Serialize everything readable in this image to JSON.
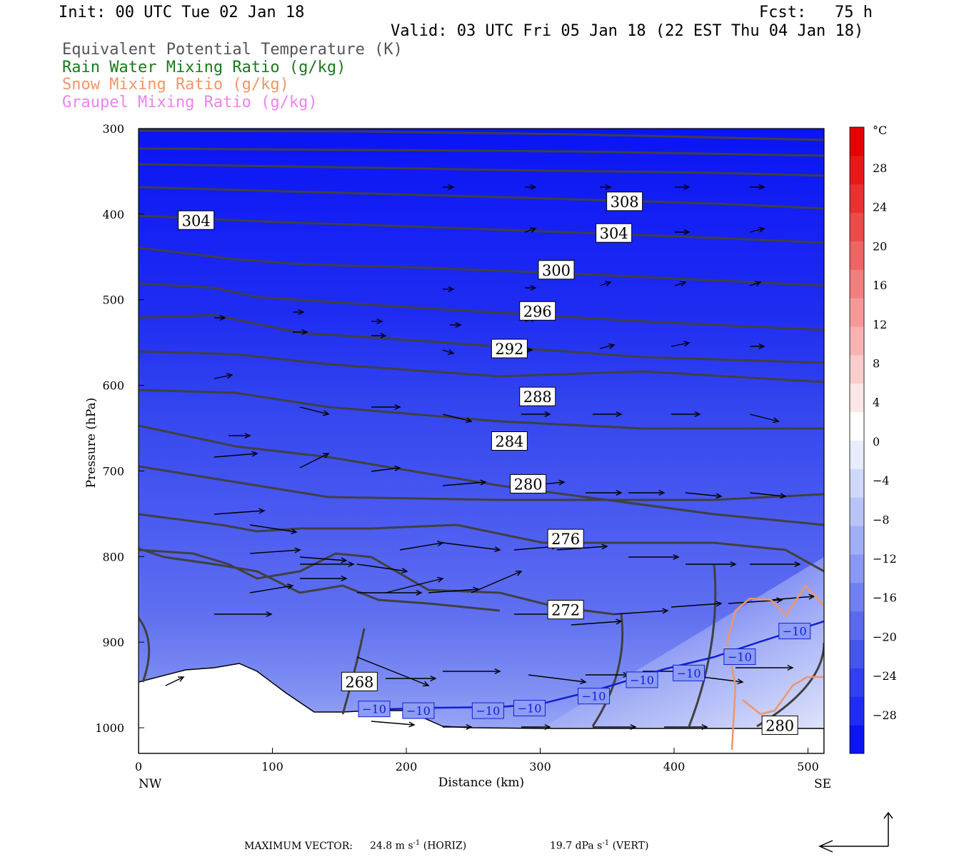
{
  "header": {
    "init": "Init: 00 UTC Tue 02 Jan 18",
    "fcst": "Fcst:   75 h",
    "valid": "Valid: 03 UTC Fri 05 Jan 18 (22 EST Thu 04 Jan 18)"
  },
  "legend": [
    {
      "text": "Equivalent Potential Temperature (K)",
      "color": "#555555"
    },
    {
      "text": "Rain Water Mixing Ratio (g/kg)",
      "color": "#1a7a1a"
    },
    {
      "text": "Snow Mixing Ratio (g/kg)",
      "color": "#f0956a"
    },
    {
      "text": "Graupel Mixing Ratio (g/kg)",
      "color": "#ee82ee"
    }
  ],
  "footer": {
    "max_vector_label": "MAXIMUM VECTOR:",
    "horiz": "24.8 m s",
    "horiz_unit": "(HORIZ)",
    "vert": "19.7 dPa s",
    "vert_unit": "(VERT)",
    "exp": "-1"
  },
  "chart_data": {
    "type": "contour",
    "xlabel": "Distance (km)",
    "ylabel": "Pressure (hPa)",
    "x_ticks": [
      0,
      100,
      200,
      300,
      400,
      500
    ],
    "y_ticks": [
      300,
      400,
      500,
      600,
      700,
      800,
      900,
      1000
    ],
    "xlim": [
      0,
      512
    ],
    "ylim": [
      1030,
      300
    ],
    "end_labels": {
      "left": "NW",
      "right": "SE"
    },
    "colorbar": {
      "unit": "°C",
      "tick_labels": [
        "28",
        "24",
        "20",
        "16",
        "12",
        "8",
        "4",
        "0",
        "-4",
        "-8",
        "-12",
        "-16",
        "-20",
        "-24",
        "-28"
      ],
      "colors_bottom_to_top": [
        "#0a14f5",
        "#1e2cf5",
        "#3040f2",
        "#4555f0",
        "#5a6af0",
        "#7080f2",
        "#8898f4",
        "#a0aef6",
        "#b8c4f8",
        "#d0d8fa",
        "#e8ecfc",
        "#ffffff",
        "#fde6e6",
        "#fbcccc",
        "#f8b2b2",
        "#f69898",
        "#f37e7e",
        "#f06464",
        "#ee4a4a",
        "#eb3030",
        "#e81818",
        "#e60000"
      ]
    },
    "theta_e_labels": [
      {
        "v": "304",
        "x": 43,
        "p": 407
      },
      {
        "v": "308",
        "x": 363,
        "p": 385
      },
      {
        "v": "304",
        "x": 355,
        "p": 422
      },
      {
        "v": "300",
        "x": 312,
        "p": 465
      },
      {
        "v": "296",
        "x": 298,
        "p": 513
      },
      {
        "v": "292",
        "x": 277,
        "p": 557
      },
      {
        "v": "288",
        "x": 298,
        "p": 613
      },
      {
        "v": "284",
        "x": 277,
        "p": 665
      },
      {
        "v": "280",
        "x": 291,
        "p": 715
      },
      {
        "v": "276",
        "x": 319,
        "p": 779
      },
      {
        "v": "272",
        "x": 319,
        "p": 862
      },
      {
        "v": "268",
        "x": 165,
        "p": 946
      },
      {
        "v": "280",
        "x": 479,
        "p": 997
      }
    ],
    "isotherm_labels": [
      {
        "v": "-10",
        "x": 176,
        "p": 978
      },
      {
        "v": "-10",
        "x": 209,
        "p": 980
      },
      {
        "v": "-10",
        "x": 261,
        "p": 980
      },
      {
        "v": "-10",
        "x": 292,
        "p": 977
      },
      {
        "v": "-10",
        "x": 340,
        "p": 963
      },
      {
        "v": "-10",
        "x": 376,
        "p": 944
      },
      {
        "v": "-10",
        "x": 411,
        "p": 936
      },
      {
        "v": "-10",
        "x": 449,
        "p": 917
      },
      {
        "v": "-10",
        "x": 490,
        "p": 887
      }
    ],
    "vector_scale": {
      "horiz_m_s": 24.8,
      "vert_dPa_s": 19.7
    }
  }
}
